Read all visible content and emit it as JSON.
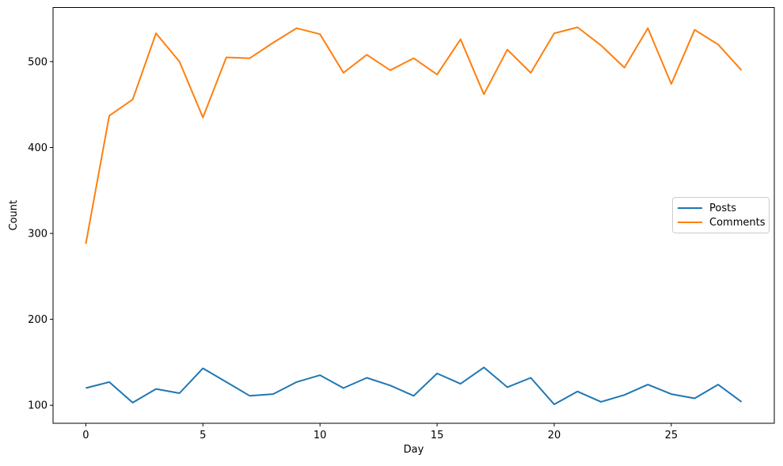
{
  "figure": {
    "background": "#ffffff",
    "text_color": "#000000",
    "spine_color": "#000000"
  },
  "chart_data": {
    "type": "line",
    "title": "",
    "xlabel": "Day",
    "ylabel": "Count",
    "x": [
      0,
      1,
      2,
      3,
      4,
      5,
      6,
      7,
      8,
      9,
      10,
      11,
      12,
      13,
      14,
      15,
      16,
      17,
      18,
      19,
      20,
      21,
      22,
      23,
      24,
      25,
      26,
      27,
      28
    ],
    "series": [
      {
        "name": "Posts",
        "color": "#1f77b4",
        "values": [
          120,
          127,
          103,
          119,
          114,
          143,
          127,
          111,
          113,
          127,
          135,
          120,
          132,
          123,
          111,
          137,
          125,
          144,
          121,
          132,
          101,
          116,
          104,
          112,
          124,
          113,
          108,
          124,
          104
        ]
      },
      {
        "name": "Comments",
        "color": "#ff7f0e",
        "values": [
          288,
          437,
          456,
          533,
          500,
          435,
          505,
          504,
          522,
          539,
          532,
          487,
          508,
          490,
          504,
          485,
          526,
          462,
          514,
          487,
          533,
          540,
          519,
          493,
          539,
          474,
          537,
          520,
          490
        ]
      }
    ],
    "xticks": [
      0,
      5,
      10,
      15,
      20,
      25
    ],
    "yticks": [
      100,
      200,
      300,
      400,
      500
    ],
    "xlim": [
      -1.4,
      29.4
    ],
    "ylim": [
      79,
      563
    ],
    "grid": false,
    "legend": {
      "position": "center right",
      "entries": [
        "Posts",
        "Comments"
      ]
    }
  }
}
